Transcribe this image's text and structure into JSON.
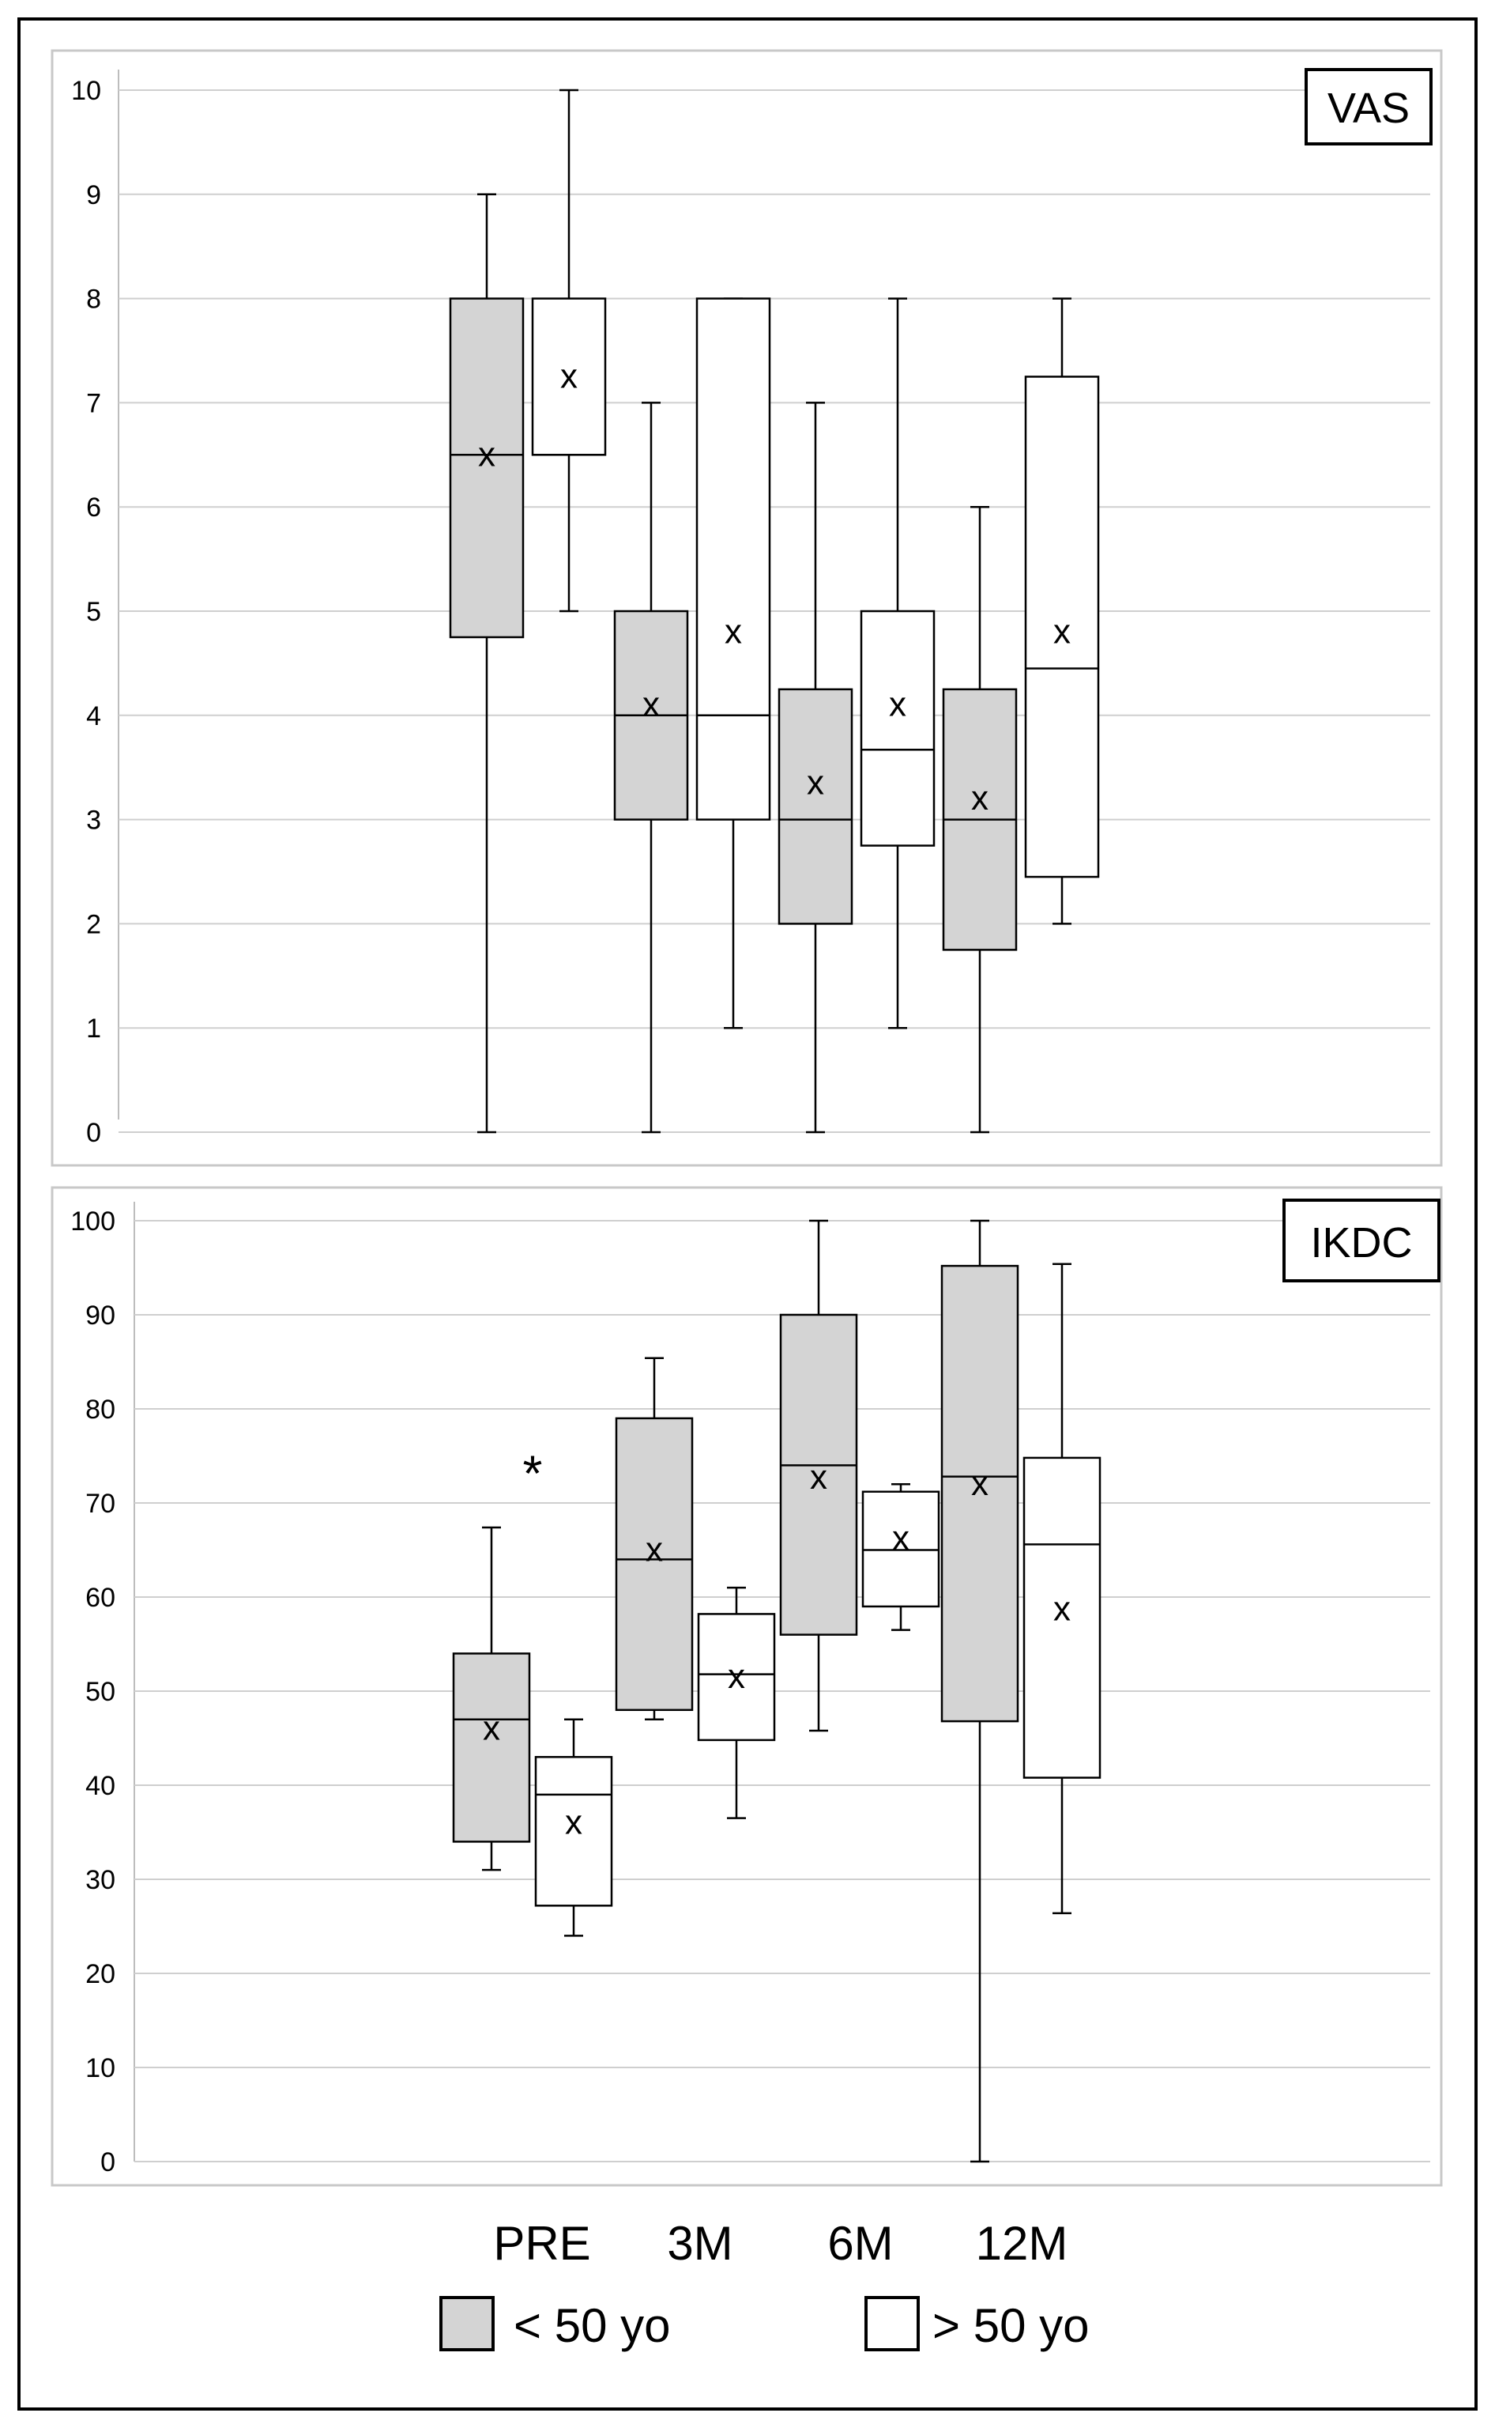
{
  "colors": {
    "group_under_50": "#d4d4d4",
    "group_over_50": "#ffffff",
    "grid": "#cfcfcf",
    "stroke": "#000000",
    "panel_border": "#c8c8c8"
  },
  "chart_data": [
    {
      "type": "boxplot",
      "title": "VAS",
      "ylim": [
        0,
        10
      ],
      "yticks": [
        0,
        1,
        2,
        3,
        4,
        5,
        6,
        7,
        8,
        9,
        10
      ],
      "grid": true,
      "categories": [
        "PRE",
        "3M",
        "6M",
        "12M"
      ],
      "series": [
        {
          "name": "< 50 yo",
          "boxes": [
            {
              "min": 0,
              "q1": 4.75,
              "median": 6.5,
              "q3": 8,
              "max": 9,
              "mean": 6.5
            },
            {
              "min": 0,
              "q1": 3,
              "median": 4,
              "q3": 5,
              "max": 7,
              "mean": 4.1
            },
            {
              "min": 0,
              "q1": 2,
              "median": 3,
              "q3": 4.25,
              "max": 7,
              "mean": 3.35
            },
            {
              "min": 0,
              "q1": 1.75,
              "median": 3,
              "q3": 4.25,
              "max": 6,
              "mean": 3.2
            }
          ]
        },
        {
          "name": "> 50 yo",
          "boxes": [
            {
              "min": 5,
              "q1": 6.5,
              "median": 6.5,
              "q3": 8,
              "max": 10,
              "mean": 7.25
            },
            {
              "min": 1,
              "q1": 3,
              "median": 4,
              "q3": 8,
              "max": 8,
              "mean": 4.8
            },
            {
              "min": 1,
              "q1": 2.75,
              "median": 3.67,
              "q3": 5,
              "max": 8,
              "mean": 4.1
            },
            {
              "min": 2,
              "q1": 2.45,
              "median": 4.45,
              "q3": 7.25,
              "max": 8,
              "mean": 4.8
            }
          ]
        }
      ],
      "mean_marker": "x",
      "annotations": []
    },
    {
      "type": "boxplot",
      "title": "IKDC",
      "ylim": [
        0,
        100
      ],
      "yticks": [
        0,
        10,
        20,
        30,
        40,
        50,
        60,
        70,
        80,
        90,
        100
      ],
      "grid": true,
      "categories": [
        "PRE",
        "3M",
        "6M",
        "12M"
      ],
      "series": [
        {
          "name": "< 50 yo",
          "boxes": [
            {
              "min": 31,
              "q1": 34,
              "median": 47,
              "q3": 54,
              "max": 67.4,
              "mean": 46
            },
            {
              "min": 47,
              "q1": 48,
              "median": 64,
              "q3": 79,
              "max": 85.4,
              "mean": 65
            },
            {
              "min": 45.8,
              "q1": 56,
              "median": 74,
              "q3": 90,
              "max": 100,
              "mean": 72.7
            },
            {
              "min": 0,
              "q1": 46.8,
              "median": 72.8,
              "q3": 95.2,
              "max": 100,
              "mean": 72
            }
          ]
        },
        {
          "name": "> 50 yo",
          "boxes": [
            {
              "min": 24,
              "q1": 27.2,
              "median": 39,
              "q3": 43,
              "max": 47,
              "mean": 36
            },
            {
              "min": 36.5,
              "q1": 44.8,
              "median": 51.8,
              "q3": 58.2,
              "max": 61,
              "mean": 51.5
            },
            {
              "min": 56.5,
              "q1": 59,
              "median": 65,
              "q3": 71.2,
              "max": 72,
              "mean": 66.2
            },
            {
              "min": 26.4,
              "q1": 40.8,
              "median": 65.6,
              "q3": 74.8,
              "max": 95.4,
              "mean": 58.7
            }
          ]
        }
      ],
      "mean_marker": "x",
      "annotations": [
        {
          "text": "*",
          "category": "PRE",
          "y": 73
        }
      ]
    }
  ],
  "legend": {
    "categories": [
      "PRE",
      "3M",
      "6M",
      "12M"
    ],
    "items": [
      {
        "label": "< 50 yo",
        "color": "#d4d4d4"
      },
      {
        "label": "> 50 yo",
        "color": "#ffffff"
      }
    ]
  }
}
